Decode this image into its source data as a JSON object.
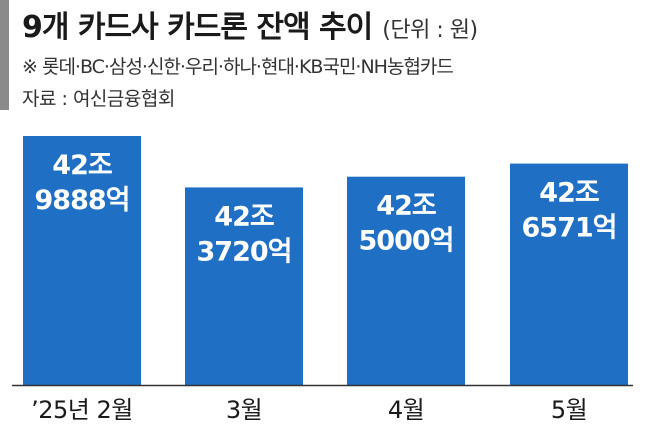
{
  "header": {
    "title": "9개 카드사 카드론 잔액 추이",
    "unit": "(단위 : 원)",
    "note": "※ 롯데·BC·삼성·신한·우리·하나·현대·KB국민·NH농협카드",
    "source": "자료 : 여신금융협회"
  },
  "chart_data": {
    "type": "bar",
    "categories": [
      "’25년 2월",
      "3월",
      "4월",
      "5월"
    ],
    "values": [
      429888,
      423720,
      425000,
      426571
    ],
    "value_unit": "억원",
    "data_labels": [
      [
        "42조",
        "9888억"
      ],
      [
        "42조",
        "3720억"
      ],
      [
        "42조",
        "5000억"
      ],
      [
        "42조",
        "6571억"
      ]
    ],
    "axis_min_assumed": 400000,
    "bar_color": "#1f6fc5",
    "label_color": "#ffffff",
    "grid": false,
    "legend": "none"
  }
}
